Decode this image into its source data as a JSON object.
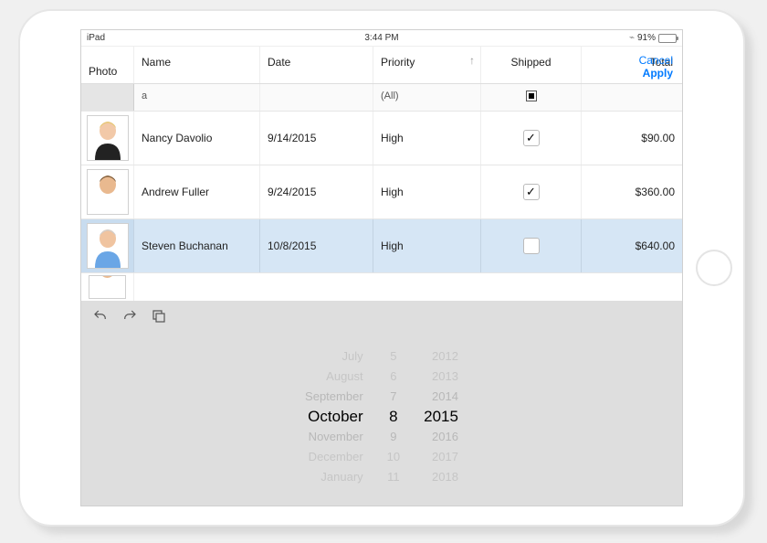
{
  "status": {
    "carrier": "iPad",
    "time": "3:44 PM",
    "battery_pct": "91%",
    "battery_fill_pct": 91,
    "bt_icon": "bluetooth"
  },
  "header": {
    "photo": "Photo",
    "name": "Name",
    "date": "Date",
    "priority": "Priority",
    "shipped": "Shipped",
    "total": "Total",
    "sort_glyph": "↑",
    "cancel": "Cancel",
    "apply": "Apply"
  },
  "filter": {
    "name": "a",
    "priority": "(All)",
    "shipped_partial": true
  },
  "rows": [
    {
      "name": "Nancy Davolio",
      "date": "9/14/2015",
      "priority": "High",
      "shipped": true,
      "total": "$90.00",
      "selected": false,
      "avatar": {
        "hair": "#e6c974",
        "tone": "#f2c9a8",
        "top": "#222"
      }
    },
    {
      "name": "Andrew Fuller",
      "date": "9/24/2015",
      "priority": "High",
      "shipped": true,
      "total": "$360.00",
      "selected": false,
      "avatar": {
        "hair": "#7a5a3a",
        "tone": "#e9b98f",
        "top": "#ffffff"
      }
    },
    {
      "name": "Steven Buchanan",
      "date": "10/8/2015",
      "priority": "High",
      "shipped": false,
      "total": "$640.00",
      "selected": true,
      "avatar": {
        "hair": "#cfcfcf",
        "tone": "#f0c4a0",
        "top": "#6aa6e6"
      }
    }
  ],
  "peek_avatar": {
    "hair": "#3a2a1a",
    "tone": "#e9b98f",
    "top": "#fff"
  },
  "picker": {
    "months": [
      "July",
      "August",
      "September",
      "October",
      "November",
      "December",
      "January"
    ],
    "days": [
      "5",
      "6",
      "7",
      "8",
      "9",
      "10",
      "11"
    ],
    "years": [
      "2012",
      "2013",
      "2014",
      "2015",
      "2016",
      "2017",
      "2018"
    ],
    "selected_index": 3
  },
  "colors": {
    "accent": "#007aff",
    "selected_row_bg": "#d6e6f5",
    "bottom_panel_bg": "#dedede",
    "battery_fill": "#4cd964"
  }
}
